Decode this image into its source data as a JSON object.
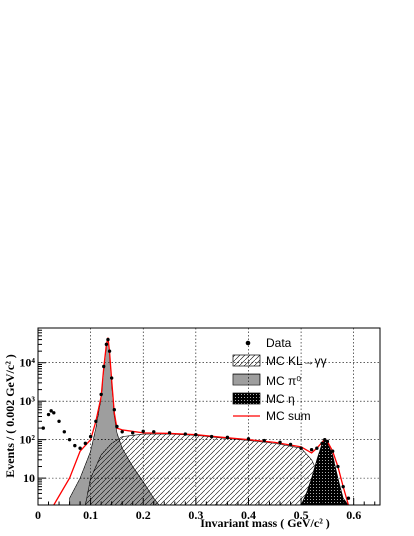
{
  "chart_data": {
    "type": "line",
    "xlabel": "Invariant mass ( GeV/c² )",
    "ylabel": "Events / ( 0.002 GeV/c² )",
    "xlim": [
      0,
      0.65
    ],
    "ylim": [
      2,
      80000
    ],
    "yscale": "log",
    "x_ticks": [
      "0",
      "0.1",
      "0.2",
      "0.3",
      "0.4",
      "0.5",
      "0.6"
    ],
    "y_ticks": [
      "10",
      "10²",
      "10³",
      "10⁴"
    ],
    "grid": true,
    "legend_position": "top-right",
    "colors": {
      "data": "#000000",
      "mc_sum": "#ff0000",
      "hatch": "#000000"
    },
    "series": [
      {
        "name": "Data",
        "style": "markers",
        "x": [
          0.01,
          0.02,
          0.025,
          0.03,
          0.04,
          0.05,
          0.06,
          0.07,
          0.08,
          0.09,
          0.1,
          0.11,
          0.12,
          0.125,
          0.13,
          0.133,
          0.136,
          0.14,
          0.145,
          0.15,
          0.16,
          0.18,
          0.2,
          0.22,
          0.25,
          0.28,
          0.3,
          0.33,
          0.36,
          0.4,
          0.43,
          0.46,
          0.48,
          0.5,
          0.52,
          0.53,
          0.54,
          0.545,
          0.55,
          0.56,
          0.57,
          0.58,
          0.59
        ],
        "y": [
          200,
          450,
          560,
          500,
          300,
          160,
          100,
          70,
          60,
          80,
          120,
          300,
          1500,
          8000,
          30000,
          40000,
          20000,
          4000,
          600,
          220,
          160,
          150,
          165,
          160,
          150,
          140,
          135,
          120,
          115,
          105,
          95,
          85,
          75,
          60,
          55,
          60,
          80,
          100,
          90,
          50,
          20,
          6,
          3
        ]
      },
      {
        "name": "MC KL→γγ",
        "style": "hatch-diagonal",
        "x": [
          0.09,
          0.1,
          0.12,
          0.14,
          0.16,
          0.2,
          0.25,
          0.3,
          0.35,
          0.4,
          0.45,
          0.5,
          0.52,
          0.54,
          0.56
        ],
        "y": [
          2,
          10,
          40,
          80,
          120,
          140,
          140,
          130,
          110,
          95,
          80,
          60,
          30,
          8,
          2
        ]
      },
      {
        "name": "MC π⁰",
        "style": "hatch-cross",
        "x": [
          0.06,
          0.08,
          0.1,
          0.11,
          0.12,
          0.125,
          0.13,
          0.133,
          0.136,
          0.14,
          0.145,
          0.15,
          0.16,
          0.18,
          0.2,
          0.22,
          0.23
        ],
        "y": [
          3,
          10,
          50,
          200,
          1200,
          7000,
          28000,
          42000,
          18000,
          3000,
          400,
          150,
          60,
          20,
          8,
          3,
          2
        ]
      },
      {
        "name": "MC η",
        "style": "filled",
        "x": [
          0.5,
          0.51,
          0.52,
          0.53,
          0.54,
          0.545,
          0.55,
          0.56,
          0.57,
          0.58,
          0.59
        ],
        "y": [
          2,
          4,
          10,
          30,
          80,
          100,
          85,
          40,
          10,
          3,
          2
        ]
      },
      {
        "name": "MC sum",
        "style": "line",
        "x": [
          0.03,
          0.06,
          0.08,
          0.1,
          0.11,
          0.12,
          0.125,
          0.13,
          0.133,
          0.136,
          0.14,
          0.145,
          0.15,
          0.16,
          0.2,
          0.25,
          0.3,
          0.35,
          0.4,
          0.45,
          0.5,
          0.52,
          0.53,
          0.54,
          0.545,
          0.55,
          0.56,
          0.57,
          0.58,
          0.59
        ],
        "y": [
          2,
          10,
          50,
          100,
          300,
          1300,
          7500,
          30000,
          45000,
          19000,
          3500,
          500,
          200,
          180,
          150,
          145,
          135,
          115,
          100,
          85,
          65,
          45,
          60,
          85,
          105,
          90,
          50,
          20,
          6,
          2
        ]
      }
    ]
  }
}
